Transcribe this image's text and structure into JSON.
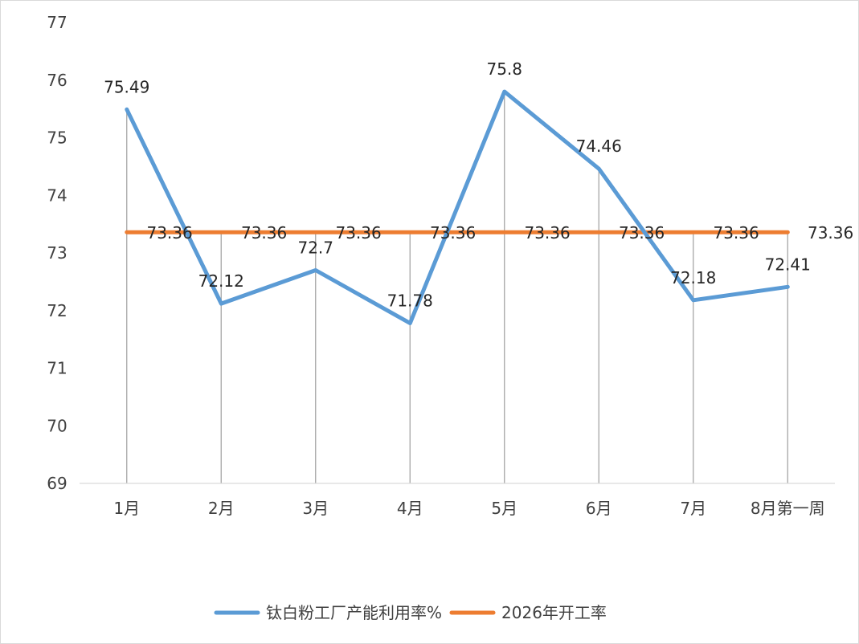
{
  "chart_data": {
    "type": "line",
    "categories": [
      "1月",
      "2月",
      "3月",
      "4月",
      "5月",
      "6月",
      "7月",
      "8月第一周"
    ],
    "ylim": [
      69,
      77
    ],
    "yticks": [
      69,
      70,
      71,
      72,
      73,
      74,
      75,
      76,
      77
    ],
    "grid": "vertical drop lines at each category",
    "legend_position": "bottom",
    "series": [
      {
        "name": "钛白粉工厂产能利用率%",
        "color": "#5b9bd5",
        "values": [
          75.49,
          72.12,
          72.7,
          71.78,
          75.8,
          74.46,
          72.18,
          72.41
        ],
        "labels": [
          "75.49",
          "72.12",
          "72.7",
          "71.78",
          "75.8",
          "74.46",
          "72.18",
          "72.41"
        ]
      },
      {
        "name": "2026年开工率",
        "color": "#ed7d31",
        "values": [
          73.36,
          73.36,
          73.36,
          73.36,
          73.36,
          73.36,
          73.36,
          73.36
        ],
        "labels": [
          "73.36",
          "73.36",
          "73.36",
          "73.36",
          "73.36",
          "73.36",
          "73.36",
          "73.36"
        ]
      }
    ]
  }
}
